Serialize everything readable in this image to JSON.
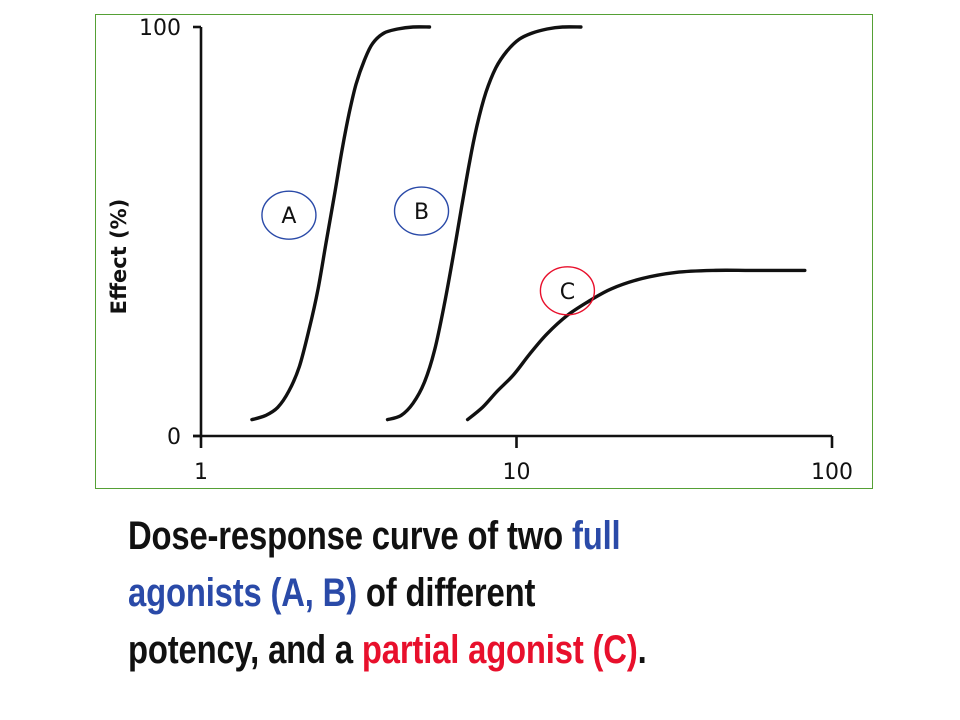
{
  "chart_data": {
    "type": "line",
    "xscale": "log",
    "xlim": [
      1,
      100
    ],
    "ylim": [
      0,
      100
    ],
    "xticks": [
      1,
      10,
      100
    ],
    "xtick_labels": [
      "1",
      "10",
      "100"
    ],
    "yticks": [
      0,
      100
    ],
    "ytick_labels": [
      "0",
      "100"
    ],
    "xlabel": "",
    "ylabel": "Effect (%)",
    "grid": false,
    "series": [
      {
        "name": "A",
        "label_color": "#2a4aa8",
        "x": [
          1.45,
          1.6,
          1.75,
          1.9,
          2.05,
          2.2,
          2.35,
          2.5,
          2.65,
          2.8,
          2.95,
          3.1,
          3.3,
          3.5,
          3.8,
          4.2,
          4.7,
          5.3
        ],
        "y": [
          4,
          5,
          7,
          11,
          17,
          26,
          36,
          48,
          59,
          70,
          79,
          86,
          92,
          96,
          98.5,
          99.5,
          100,
          100
        ]
      },
      {
        "name": "B",
        "label_color": "#2a4aa8",
        "x": [
          3.9,
          4.3,
          4.7,
          5.1,
          5.5,
          5.9,
          6.3,
          6.7,
          7.1,
          7.5,
          8.0,
          8.6,
          9.3,
          10.2,
          11.2,
          12.5,
          14.0,
          16.0
        ],
        "y": [
          4,
          5,
          8,
          13,
          21,
          32,
          44,
          56,
          67,
          76,
          84,
          90,
          94,
          97,
          98.5,
          99.5,
          100,
          100
        ]
      },
      {
        "name": "C",
        "label_color": "#e8102c",
        "x": [
          7.0,
          7.8,
          8.7,
          9.8,
          11.0,
          12.5,
          14.5,
          17.0,
          20.0,
          25.0,
          32.0,
          42.0,
          55.0,
          70.0,
          82.0
        ],
        "y": [
          4,
          7,
          11,
          15,
          20,
          25,
          29.5,
          33,
          36,
          38.5,
          40,
          40.5,
          40.5,
          40.5,
          40.5
        ]
      }
    ],
    "annotations": [
      {
        "text": "A",
        "x": 1.9,
        "y": 54,
        "circle_color": "#2a4aa8"
      },
      {
        "text": "B",
        "x": 5.0,
        "y": 55,
        "circle_color": "#2a4aa8"
      },
      {
        "text": "C",
        "x": 14.5,
        "y": 35.5,
        "circle_color": "#e8102c"
      }
    ]
  },
  "caption": {
    "line1_a": "Dose-response curve of two ",
    "line1_b": "full",
    "line2_a": "agonists (A, B)",
    "line2_b": " of different",
    "line3_a": "potency, and a ",
    "line3_b": "partial agonist (C)",
    "line3_c": "."
  }
}
